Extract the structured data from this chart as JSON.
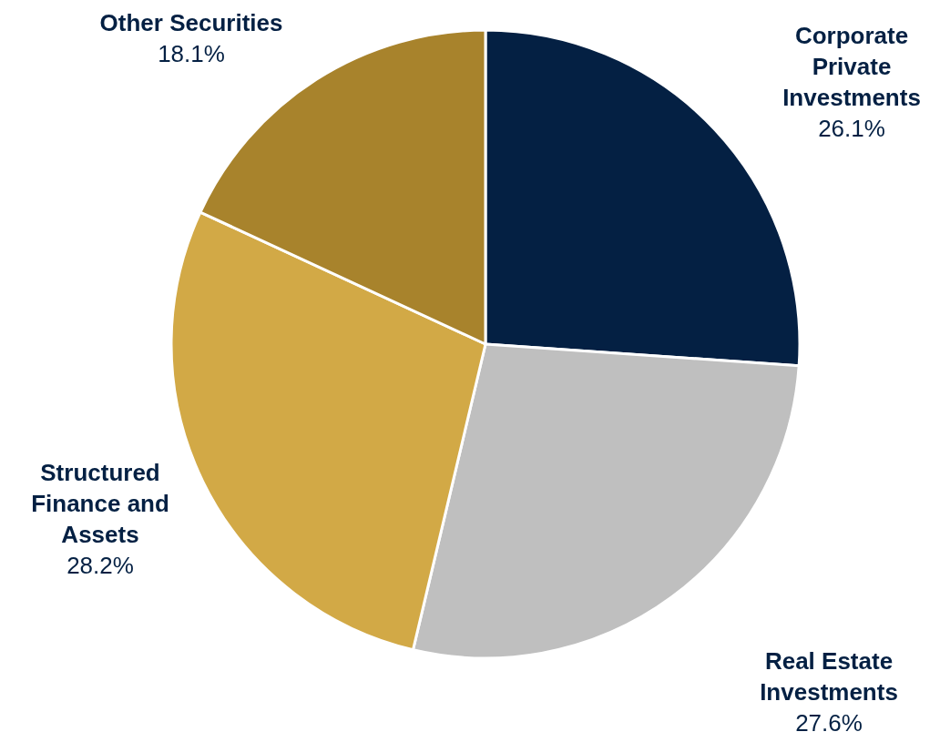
{
  "chart_data": {
    "type": "pie",
    "categories": [
      "Corporate Private Investments",
      "Real Estate Investments",
      "Structured Finance and Assets",
      "Other Securities"
    ],
    "values": [
      26.1,
      27.6,
      28.2,
      18.1
    ],
    "value_labels": [
      "26.1%",
      "27.6%",
      "28.2%",
      "18.1%"
    ],
    "colors": [
      "#042043",
      "#bfbfbf",
      "#d2a946",
      "#a8832c"
    ],
    "legend": false
  }
}
